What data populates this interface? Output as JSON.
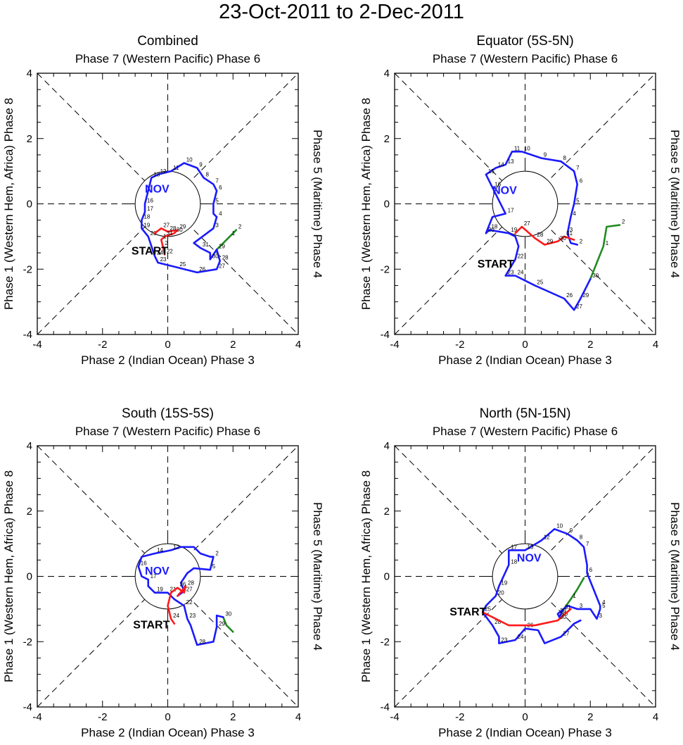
{
  "title": "23-Oct-2011 to 2-Dec-2011",
  "colors": {
    "oct": "#228B22",
    "nov": "#1a1aff",
    "dec": "#ff1a1a"
  },
  "axis": {
    "top": "Phase 7 (Western Pacific) Phase 6",
    "bottom": "Phase 2 (Indian Ocean) Phase 3",
    "left": "Phase 1 (Western Hem, Africa) Phase 8",
    "right": "Phase 5 (Maritime) Phase 4",
    "ticks": [
      "-4",
      "-2",
      "0",
      "2",
      "4"
    ]
  },
  "labels": {
    "start": "START",
    "month": "NOV"
  },
  "chart_data": [
    {
      "type": "line",
      "title": "Combined",
      "xlim": [
        -4,
        4
      ],
      "ylim": [
        -4,
        4
      ],
      "xlabel": "Phase 2 (Indian Ocean) Phase 3",
      "ylabel": "Phase 1 (Western Hem, Africa) Phase 8",
      "month_label": {
        "text": "NOV",
        "x": -0.7,
        "y": 0.35
      },
      "start_label": {
        "text": "START",
        "x": -0.55,
        "y": -1.55
      },
      "segments": [
        {
          "month": "oct",
          "points": [
            [
              2.1,
              -0.8
            ],
            [
              1.9,
              -1.0
            ],
            [
              1.5,
              -1.4
            ]
          ],
          "days": [
            "2",
            "1",
            ""
          ]
        },
        {
          "month": "nov",
          "points": [
            [
              1.5,
              -1.4
            ],
            [
              1.3,
              -1.7
            ],
            [
              1.3,
              -1.5
            ],
            [
              1.0,
              -1.35
            ],
            [
              0.8,
              -1.2
            ],
            [
              1.4,
              -0.75
            ],
            [
              1.5,
              -0.4
            ],
            [
              1.4,
              -0.3
            ],
            [
              1.4,
              0.0
            ],
            [
              1.5,
              0.4
            ],
            [
              1.4,
              0.6
            ],
            [
              1.1,
              0.8
            ],
            [
              0.9,
              1.1
            ],
            [
              0.5,
              1.25
            ],
            [
              0.1,
              1.0
            ],
            [
              -0.3,
              0.9
            ],
            [
              -0.5,
              0.8
            ],
            [
              -0.7,
              0.0
            ],
            [
              -0.7,
              -0.25
            ],
            [
              -0.8,
              -0.5
            ],
            [
              -0.8,
              -0.75
            ],
            [
              -0.6,
              -1.0
            ],
            [
              -0.4,
              -1.6
            ],
            [
              -0.3,
              -1.8
            ],
            [
              0.3,
              -1.95
            ],
            [
              0.9,
              -2.1
            ],
            [
              1.5,
              -2.0
            ],
            [
              1.6,
              -1.75
            ],
            [
              1.5,
              -1.4
            ]
          ],
          "days": [
            "",
            "30",
            "",
            "31",
            "",
            "3",
            "4",
            "",
            "5",
            "6",
            "7",
            "8",
            "9",
            "10",
            "11",
            "12",
            "13",
            "16",
            "17",
            "18",
            "19",
            "20",
            "24",
            "23",
            "25",
            "26",
            "27",
            "28",
            "29"
          ]
        },
        {
          "month": "dec",
          "points": [
            [
              -0.4,
              -0.9
            ],
            [
              -0.2,
              -0.75
            ],
            [
              0.0,
              -0.85
            ],
            [
              0.3,
              -0.8
            ],
            [
              0.2,
              -0.9
            ],
            [
              -0.1,
              -1.0
            ],
            [
              -0.2,
              -1.1
            ],
            [
              -0.15,
              -1.3
            ],
            [
              -0.1,
              -1.55
            ]
          ],
          "days": [
            "",
            "27",
            "28",
            "29",
            "30",
            "31",
            "1",
            "2",
            "22"
          ]
        }
      ]
    },
    {
      "type": "line",
      "title": "Equator (5S-5N)",
      "xlim": [
        -4,
        4
      ],
      "ylim": [
        -4,
        4
      ],
      "xlabel": "Phase 2 (Indian Ocean) Phase 3",
      "ylabel": "Phase 1 (Western Hem, Africa) Phase 8",
      "month_label": {
        "text": "NOV",
        "x": -1.0,
        "y": 0.3
      },
      "start_label": {
        "text": "START",
        "x": -0.9,
        "y": -1.95
      },
      "segments": [
        {
          "month": "oct",
          "points": [
            [
              2.9,
              -0.65
            ],
            [
              2.5,
              -0.7
            ],
            [
              2.4,
              -1.3
            ],
            [
              2.2,
              -1.8
            ],
            [
              2.0,
              -2.3
            ]
          ],
          "days": [
            "2",
            "",
            "1",
            "",
            ""
          ]
        },
        {
          "month": "nov",
          "points": [
            [
              2.0,
              -2.3
            ],
            [
              1.7,
              -2.9
            ],
            [
              1.5,
              -3.25
            ],
            [
              1.2,
              -2.9
            ],
            [
              0.3,
              -2.5
            ],
            [
              -0.3,
              -2.2
            ],
            [
              -0.6,
              -2.2
            ],
            [
              -0.3,
              -1.7
            ],
            [
              -0.2,
              -1.3
            ],
            [
              -0.3,
              -1.0
            ],
            [
              -0.5,
              -0.9
            ],
            [
              -1.1,
              -0.8
            ],
            [
              -1.2,
              -0.9
            ],
            [
              -1.0,
              -0.4
            ],
            [
              -0.6,
              -0.3
            ],
            [
              -1.0,
              0.5
            ],
            [
              -1.2,
              0.9
            ],
            [
              -0.9,
              1.1
            ],
            [
              -0.6,
              1.2
            ],
            [
              -0.4,
              1.6
            ],
            [
              -0.1,
              1.6
            ],
            [
              0.5,
              1.4
            ],
            [
              1.1,
              1.3
            ],
            [
              1.5,
              1.0
            ],
            [
              1.6,
              0.6
            ],
            [
              1.5,
              0.0
            ],
            [
              1.4,
              -0.4
            ],
            [
              1.3,
              -0.9
            ],
            [
              1.4,
              -1.2
            ],
            [
              1.6,
              -1.25
            ]
          ],
          "days": [
            "30",
            "29",
            "27",
            "26",
            "25",
            "24",
            "23",
            "22",
            "",
            "",
            "19",
            "18",
            "20",
            "",
            "17",
            "16",
            "15",
            "14",
            "13",
            "11",
            "10",
            "9",
            "8",
            "7",
            "6",
            "5",
            "4",
            "3",
            "",
            "2"
          ]
        },
        {
          "month": "dec",
          "points": [
            [
              -0.3,
              -0.9
            ],
            [
              -0.1,
              -0.7
            ],
            [
              0.3,
              -1.05
            ],
            [
              0.6,
              -1.25
            ],
            [
              1.0,
              -1.15
            ],
            [
              1.2,
              -1.0
            ],
            [
              1.5,
              -1.1
            ]
          ],
          "days": [
            "",
            "27",
            "28",
            "29",
            "30",
            "31",
            ""
          ]
        }
      ]
    },
    {
      "type": "line",
      "title": "South (15S-5S)",
      "xlim": [
        -4,
        4
      ],
      "ylim": [
        -4,
        4
      ],
      "xlabel": "Phase 2 (Indian Ocean) Phase 3",
      "ylabel": "Phase 1 (Western Hem, Africa) Phase 8",
      "month_label": {
        "text": "NOV",
        "x": -0.7,
        "y": 0.05
      },
      "start_label": {
        "text": "START",
        "x": -0.5,
        "y": -1.6
      },
      "segments": [
        {
          "month": "oct",
          "points": [
            [
              2.0,
              -1.7
            ],
            [
              1.8,
              -1.5
            ],
            [
              1.7,
              -1.25
            ]
          ],
          "days": [
            "",
            "",
            ""
          ]
        },
        {
          "month": "nov",
          "points": [
            [
              1.7,
              -1.25
            ],
            [
              1.5,
              -1.2
            ],
            [
              1.5,
              -1.55
            ],
            [
              1.4,
              -2.0
            ],
            [
              0.9,
              -2.1
            ],
            [
              0.7,
              -1.5
            ],
            [
              0.6,
              -1.3
            ],
            [
              0.5,
              -0.9
            ],
            [
              0.2,
              -0.7
            ],
            [
              0.0,
              -0.5
            ],
            [
              -0.4,
              -0.5
            ],
            [
              -0.6,
              -0.3
            ],
            [
              -0.6,
              -0.1
            ],
            [
              -0.8,
              0.0
            ],
            [
              -0.9,
              0.3
            ],
            [
              -0.8,
              0.6
            ],
            [
              -0.4,
              0.7
            ],
            [
              0.1,
              0.8
            ],
            [
              0.4,
              0.9
            ],
            [
              0.8,
              0.9
            ],
            [
              1.0,
              0.7
            ],
            [
              1.3,
              0.6
            ],
            [
              1.4,
              0.6
            ],
            [
              1.3,
              0.2
            ],
            [
              0.8,
              0.25
            ],
            [
              0.6,
              0.1
            ],
            [
              0.4,
              -0.2
            ],
            [
              0.5,
              -0.45
            ],
            [
              0.3,
              -0.6
            ]
          ],
          "days": [
            "30",
            "",
            "29",
            "",
            "28",
            "",
            "23",
            "22",
            "",
            "21",
            "19",
            "",
            "17",
            "",
            "16",
            "",
            "14",
            "12",
            "",
            "",
            "",
            "",
            "2",
            "5",
            "",
            "",
            "",
            "",
            ""
          ]
        },
        {
          "month": "dec",
          "points": [
            [
              0.3,
              -0.6
            ],
            [
              0.55,
              -0.3
            ],
            [
              0.5,
              -0.5
            ],
            [
              0.3,
              -0.35
            ],
            [
              0.1,
              -0.5
            ],
            [
              0.0,
              -0.9
            ],
            [
              0.1,
              -1.3
            ],
            [
              0.2,
              -1.45
            ]
          ],
          "days": [
            "",
            "28",
            "27",
            "26",
            "",
            "",
            "24",
            ""
          ]
        }
      ]
    },
    {
      "type": "line",
      "title": "North (5N-15N)",
      "xlim": [
        -4,
        4
      ],
      "ylim": [
        -4,
        4
      ],
      "xlabel": "Phase 2 (Indian Ocean) Phase 3",
      "ylabel": "Phase 1 (Western Hem, Africa) Phase 8",
      "month_label": {
        "text": "NOV",
        "x": -0.25,
        "y": 0.45
      },
      "start_label": {
        "text": "START",
        "x": -1.75,
        "y": -1.2
      },
      "segments": [
        {
          "month": "oct",
          "points": [
            [
              1.8,
              -0.05
            ],
            [
              1.6,
              -0.4
            ],
            [
              1.4,
              -0.7
            ],
            [
              1.15,
              -1.05
            ]
          ],
          "days": [
            "2",
            "",
            "1",
            ""
          ]
        },
        {
          "month": "nov",
          "points": [
            [
              1.15,
              -1.05
            ],
            [
              1.05,
              -1.25
            ],
            [
              1.0,
              -1.15
            ],
            [
              1.3,
              -0.9
            ],
            [
              1.6,
              -1.0
            ],
            [
              2.0,
              -1.0
            ],
            [
              2.2,
              -1.3
            ],
            [
              2.3,
              -1.0
            ],
            [
              2.3,
              -0.9
            ],
            [
              2.1,
              -0.4
            ],
            [
              1.9,
              0.1
            ],
            [
              1.9,
              0.35
            ],
            [
              1.8,
              0.9
            ],
            [
              1.6,
              1.1
            ],
            [
              1.3,
              1.3
            ],
            [
              0.9,
              1.45
            ],
            [
              0.5,
              1.1
            ],
            [
              0.0,
              0.8
            ],
            [
              -0.5,
              0.8
            ],
            [
              -0.5,
              0.35
            ],
            [
              -0.8,
              -0.3
            ],
            [
              -0.9,
              -0.6
            ],
            [
              -1.2,
              -0.9
            ],
            [
              -1.3,
              -1.1
            ],
            [
              -1.0,
              -1.5
            ],
            [
              -0.8,
              -1.85
            ],
            [
              -0.8,
              -2.05
            ],
            [
              -0.3,
              -1.95
            ],
            [
              0.0,
              -1.6
            ],
            [
              0.4,
              -1.65
            ],
            [
              0.6,
              -2.05
            ],
            [
              1.1,
              -1.85
            ],
            [
              1.5,
              -1.45
            ],
            [
              1.7,
              -1.35
            ]
          ],
          "days": [
            "31",
            "30",
            "29",
            "",
            "3",
            "",
            "3",
            "5",
            "4",
            "",
            "6",
            "",
            "7",
            "8",
            "9",
            "10",
            "12",
            "13",
            "17",
            "18",
            "19",
            "20",
            "",
            "25",
            "28",
            "",
            "23",
            "24",
            "26",
            "",
            "",
            "27",
            "",
            ""
          ]
        },
        {
          "month": "dec",
          "points": [
            [
              -1.3,
              -1.1
            ],
            [
              -0.9,
              -1.3
            ],
            [
              -0.5,
              -1.5
            ],
            [
              0.3,
              -1.5
            ],
            [
              1.0,
              -1.35
            ],
            [
              1.4,
              -1.0
            ]
          ],
          "days": [
            "",
            "",
            "",
            "",
            "30",
            ""
          ]
        }
      ]
    }
  ]
}
